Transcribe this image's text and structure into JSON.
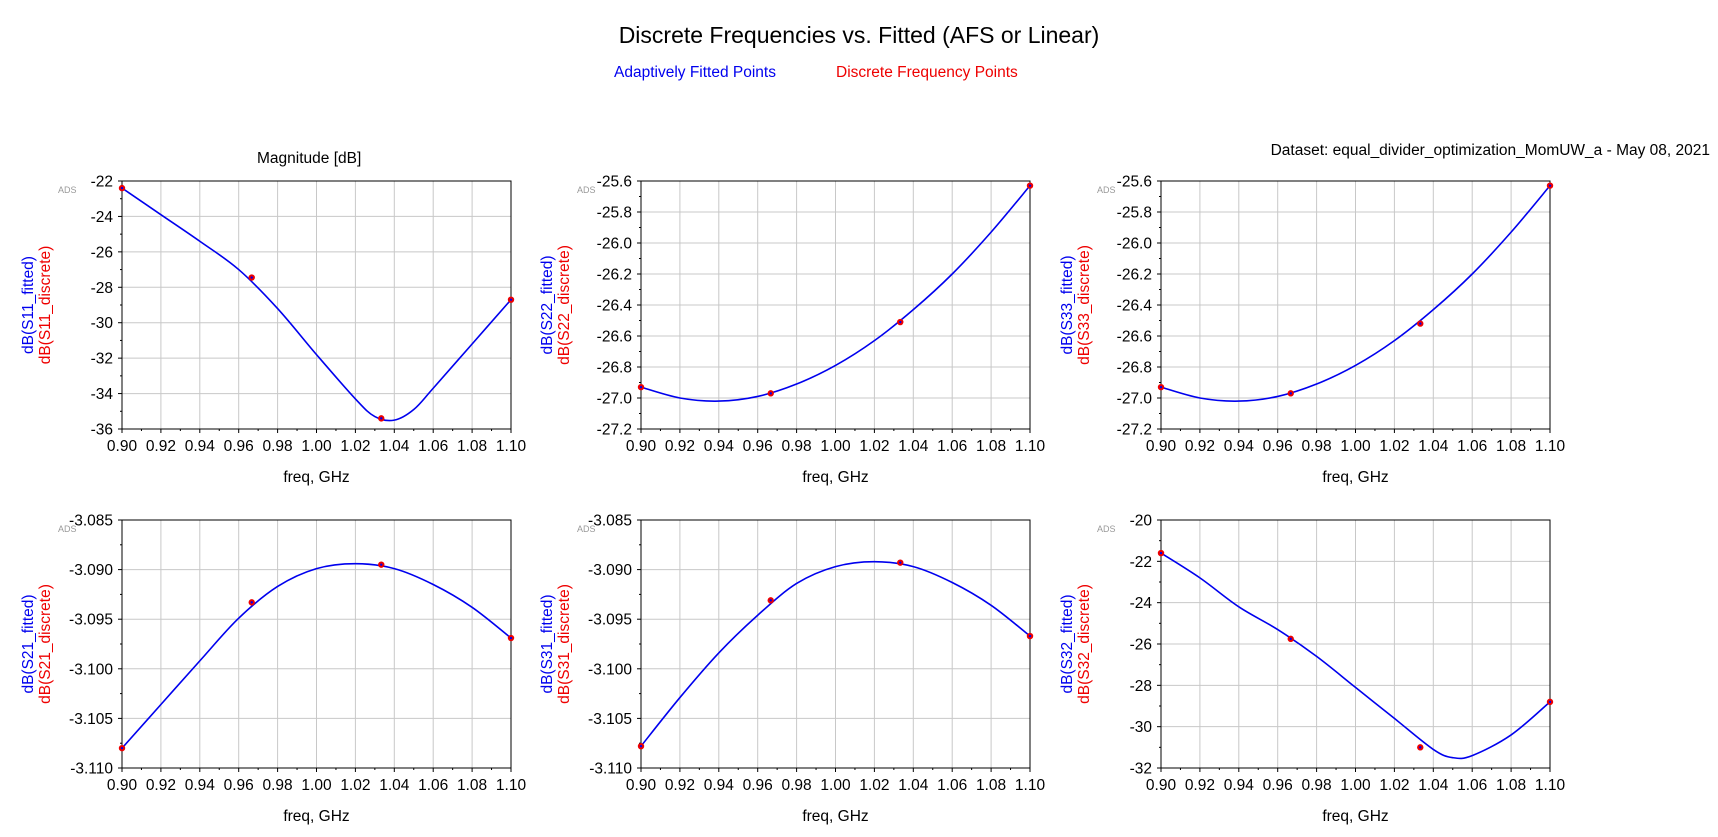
{
  "header": {
    "title": "Discrete Frequencies vs. Fitted (AFS or Linear)",
    "legend_fitted": "Adaptively Fitted Points",
    "legend_discrete": "Discrete Frequency Points",
    "magnitude_label": "Magnitude [dB]",
    "dataset_label": "Dataset: equal_divider_optimization_MomUW_a - May 08, 2021"
  },
  "colors": {
    "fitted": "#0000ee",
    "discrete": "#ee0000",
    "grid": "#c8c8c8",
    "axis": "#000000"
  },
  "chart_data": [
    {
      "type": "line",
      "id": "s11",
      "corner_tag": "ADS",
      "xlabel": "freq, GHz",
      "ylabel_fitted": "dB(S11_fitted)",
      "ylabel_discrete": "dB(S11_discrete)",
      "xlim": [
        0.9,
        1.1
      ],
      "xticks": [
        "0.90",
        "0.92",
        "0.94",
        "0.96",
        "0.98",
        "1.00",
        "1.02",
        "1.04",
        "1.06",
        "1.08",
        "1.10"
      ],
      "ylim": [
        -36,
        -22
      ],
      "yticks": [
        "-22",
        "-24",
        "-26",
        "-28",
        "-30",
        "-32",
        "-34",
        "-36"
      ],
      "grid": true,
      "fitted": {
        "x": [
          0.9,
          0.92,
          0.94,
          0.96,
          0.98,
          1.0,
          1.02,
          1.03,
          1.04,
          1.05,
          1.06,
          1.08,
          1.1
        ],
        "y": [
          -22.4,
          -23.9,
          -25.4,
          -27.0,
          -29.2,
          -31.8,
          -34.3,
          -35.3,
          -35.5,
          -34.9,
          -33.7,
          -31.2,
          -28.7
        ]
      },
      "discrete": {
        "x": [
          0.9,
          0.9667,
          1.0333,
          1.1
        ],
        "y": [
          -22.4,
          -27.45,
          -35.4,
          -28.7
        ]
      }
    },
    {
      "type": "line",
      "id": "s22",
      "corner_tag": "ADS",
      "xlabel": "freq, GHz",
      "ylabel_fitted": "dB(S22_fitted)",
      "ylabel_discrete": "dB(S22_discrete)",
      "xlim": [
        0.9,
        1.1
      ],
      "xticks": [
        "0.90",
        "0.92",
        "0.94",
        "0.96",
        "0.98",
        "1.00",
        "1.02",
        "1.04",
        "1.06",
        "1.08",
        "1.10"
      ],
      "ylim": [
        -27.2,
        -25.6
      ],
      "yticks": [
        "-25.6",
        "-25.8",
        "-26.0",
        "-26.2",
        "-26.4",
        "-26.6",
        "-26.8",
        "-27.0",
        "-27.2"
      ],
      "grid": true,
      "fitted": {
        "x": [
          0.9,
          0.92,
          0.94,
          0.96,
          0.98,
          1.0,
          1.02,
          1.04,
          1.06,
          1.08,
          1.1
        ],
        "y": [
          -26.93,
          -27.0,
          -27.02,
          -26.99,
          -26.91,
          -26.79,
          -26.63,
          -26.43,
          -26.2,
          -25.93,
          -25.63
        ]
      },
      "discrete": {
        "x": [
          0.9,
          0.9667,
          1.0333,
          1.1
        ],
        "y": [
          -26.93,
          -26.97,
          -26.51,
          -25.63
        ]
      }
    },
    {
      "type": "line",
      "id": "s33",
      "corner_tag": "ADS",
      "xlabel": "freq, GHz",
      "ylabel_fitted": "dB(S33_fitted)",
      "ylabel_discrete": "dB(S33_discrete)",
      "xlim": [
        0.9,
        1.1
      ],
      "xticks": [
        "0.90",
        "0.92",
        "0.94",
        "0.96",
        "0.98",
        "1.00",
        "1.02",
        "1.04",
        "1.06",
        "1.08",
        "1.10"
      ],
      "ylim": [
        -27.2,
        -25.6
      ],
      "yticks": [
        "-25.6",
        "-25.8",
        "-26.0",
        "-26.2",
        "-26.4",
        "-26.6",
        "-26.8",
        "-27.0",
        "-27.2"
      ],
      "grid": true,
      "fitted": {
        "x": [
          0.9,
          0.92,
          0.94,
          0.96,
          0.98,
          1.0,
          1.02,
          1.04,
          1.06,
          1.08,
          1.1
        ],
        "y": [
          -26.93,
          -27.0,
          -27.02,
          -26.99,
          -26.91,
          -26.79,
          -26.63,
          -26.43,
          -26.2,
          -25.93,
          -25.63
        ]
      },
      "discrete": {
        "x": [
          0.9,
          0.9667,
          1.0333,
          1.1
        ],
        "y": [
          -26.93,
          -26.97,
          -26.52,
          -25.63
        ]
      }
    },
    {
      "type": "line",
      "id": "s21",
      "corner_tag": "ADS",
      "xlabel": "freq, GHz",
      "ylabel_fitted": "dB(S21_fitted)",
      "ylabel_discrete": "dB(S21_discrete)",
      "xlim": [
        0.9,
        1.1
      ],
      "xticks": [
        "0.90",
        "0.92",
        "0.94",
        "0.96",
        "0.98",
        "1.00",
        "1.02",
        "1.04",
        "1.06",
        "1.08",
        "1.10"
      ],
      "ylim": [
        -3.11,
        -3.085
      ],
      "yticks": [
        "-3.085",
        "-3.090",
        "-3.095",
        "-3.100",
        "-3.105",
        "-3.110"
      ],
      "grid": true,
      "fitted": {
        "x": [
          0.9,
          0.92,
          0.94,
          0.96,
          0.98,
          1.0,
          1.02,
          1.04,
          1.06,
          1.08,
          1.1
        ],
        "y": [
          -3.108,
          -3.1036,
          -3.0992,
          -3.0949,
          -3.0917,
          -3.0899,
          -3.0894,
          -3.0899,
          -3.0915,
          -3.0938,
          -3.0969
        ]
      },
      "discrete": {
        "x": [
          0.9,
          0.9667,
          1.0333,
          1.1
        ],
        "y": [
          -3.108,
          -3.0933,
          -3.0895,
          -3.0969
        ]
      }
    },
    {
      "type": "line",
      "id": "s31",
      "corner_tag": "ADS",
      "xlabel": "freq, GHz",
      "ylabel_fitted": "dB(S31_fitted)",
      "ylabel_discrete": "dB(S31_discrete)",
      "xlim": [
        0.9,
        1.1
      ],
      "xticks": [
        "0.90",
        "0.92",
        "0.94",
        "0.96",
        "0.98",
        "1.00",
        "1.02",
        "1.04",
        "1.06",
        "1.08",
        "1.10"
      ],
      "ylim": [
        -3.11,
        -3.085
      ],
      "yticks": [
        "-3.085",
        "-3.090",
        "-3.095",
        "-3.100",
        "-3.105",
        "-3.110"
      ],
      "grid": true,
      "fitted": {
        "x": [
          0.9,
          0.92,
          0.94,
          0.96,
          0.98,
          1.0,
          1.02,
          1.04,
          1.06,
          1.08,
          1.1
        ],
        "y": [
          -3.1078,
          -3.1029,
          -3.0984,
          -3.0946,
          -3.0914,
          -3.0897,
          -3.0892,
          -3.0897,
          -3.0913,
          -3.0936,
          -3.0967
        ]
      },
      "discrete": {
        "x": [
          0.9,
          0.9667,
          1.0333,
          1.1
        ],
        "y": [
          -3.1078,
          -3.0931,
          -3.0893,
          -3.0967
        ]
      }
    },
    {
      "type": "line",
      "id": "s32",
      "corner_tag": "ADS",
      "xlabel": "freq, GHz",
      "ylabel_fitted": "dB(S32_fitted)",
      "ylabel_discrete": "dB(S32_discrete)",
      "xlim": [
        0.9,
        1.1
      ],
      "xticks": [
        "0.90",
        "0.92",
        "0.94",
        "0.96",
        "0.98",
        "1.00",
        "1.02",
        "1.04",
        "1.06",
        "1.08",
        "1.10"
      ],
      "ylim": [
        -32,
        -20
      ],
      "yticks": [
        "-20",
        "-22",
        "-24",
        "-26",
        "-28",
        "-30",
        "-32"
      ],
      "grid": true,
      "fitted": {
        "x": [
          0.9,
          0.92,
          0.94,
          0.96,
          0.98,
          1.0,
          1.02,
          1.04,
          1.05,
          1.06,
          1.08,
          1.1
        ],
        "y": [
          -21.6,
          -22.8,
          -24.2,
          -25.3,
          -26.6,
          -28.1,
          -29.6,
          -31.1,
          -31.5,
          -31.4,
          -30.4,
          -28.8
        ]
      },
      "discrete": {
        "x": [
          0.9,
          0.9667,
          1.0333,
          1.1
        ],
        "y": [
          -21.6,
          -25.75,
          -31.0,
          -28.8
        ]
      }
    }
  ]
}
